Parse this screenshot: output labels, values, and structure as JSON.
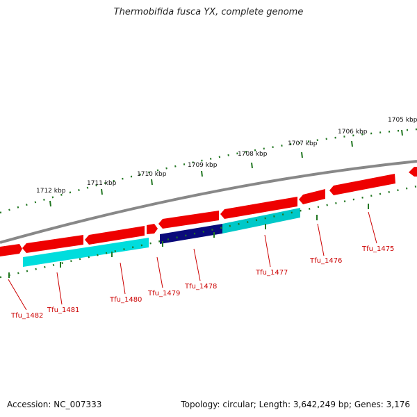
{
  "title": "Thermobifida fusca YX, complete genome",
  "footer": {
    "accession": "Accession: NC_007333",
    "topology": "Topology: circular; Length: 3,642,249 bp; Genes: 3,176"
  },
  "colors": {
    "backbone": "#888888",
    "forward_gene": "#ee0000",
    "reverse_gene": "#00dddd",
    "highlight_gene": "#0a0a7a",
    "tick": "#227722",
    "label": "#cc0000"
  },
  "ticks": [
    {
      "label": "1712 kbp",
      "kbp": 1712
    },
    {
      "label": "1711 kbp",
      "kbp": 1711
    },
    {
      "label": "1710 kbp",
      "kbp": 1710
    },
    {
      "label": "1709 kbp",
      "kbp": 1709
    },
    {
      "label": "1708 kbp",
      "kbp": 1708
    },
    {
      "label": "1707 kbp",
      "kbp": 1707
    },
    {
      "label": "1706 kbp",
      "kbp": 1706
    },
    {
      "label": "1705 kbp",
      "kbp": 1705
    }
  ],
  "genes": [
    {
      "label": "Tfu_1482",
      "strand": "forward"
    },
    {
      "label": "Tfu_1481",
      "strand": "reverse"
    },
    {
      "label": "Tfu_1480",
      "strand": "reverse"
    },
    {
      "label": "Tfu_1479",
      "strand": "forward"
    },
    {
      "label": "Tfu_1478",
      "strand": "reverse",
      "highlight": true
    },
    {
      "label": "Tfu_1477",
      "strand": "reverse"
    },
    {
      "label": "Tfu_1476",
      "strand": "forward"
    },
    {
      "label": "Tfu_1475",
      "strand": "forward"
    }
  ]
}
